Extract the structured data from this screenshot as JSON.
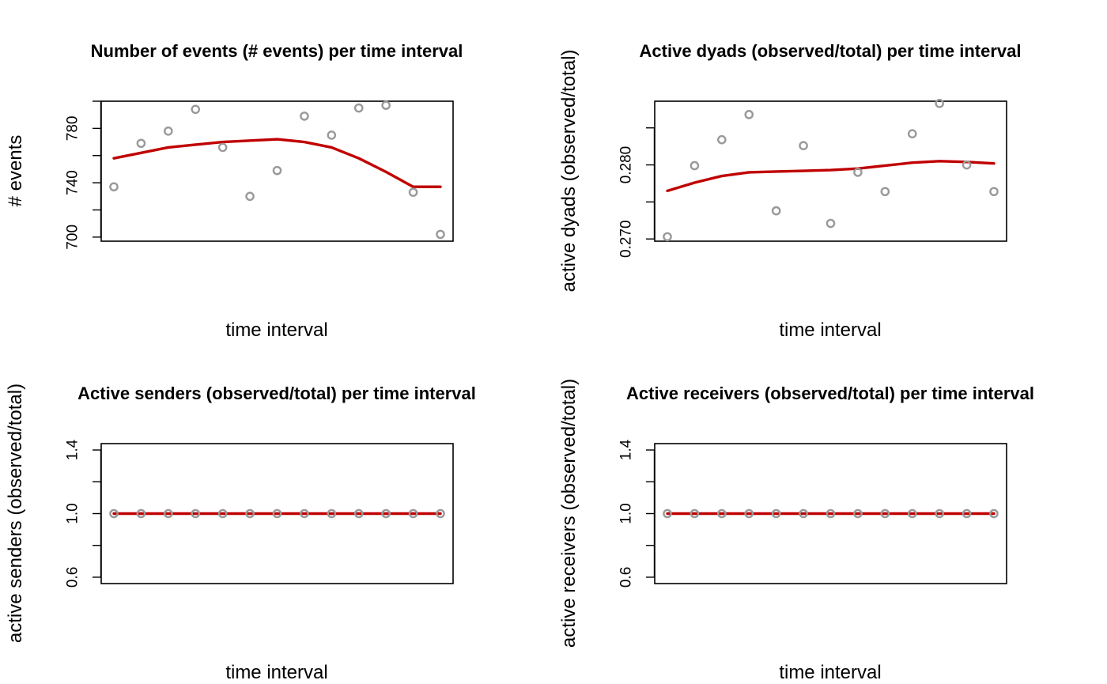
{
  "chart_data": [
    {
      "type": "scatter",
      "title": "Number of events (# events) per time interval",
      "xlabel": "time interval",
      "ylabel": "# events",
      "x": [
        1,
        2,
        3,
        4,
        5,
        6,
        7,
        8,
        9,
        10,
        11,
        12,
        13
      ],
      "ylim": [
        697,
        800
      ],
      "yticks": [
        700,
        740,
        780
      ],
      "yminor": [
        720,
        760,
        800
      ],
      "series": [
        {
          "role": "points",
          "values": [
            737,
            769,
            778,
            794,
            766,
            730,
            749,
            789,
            775,
            795,
            797,
            733,
            702
          ]
        },
        {
          "role": "trend",
          "values": [
            758,
            762,
            766,
            768,
            770,
            771,
            772,
            770,
            766,
            758,
            748,
            737,
            737
          ]
        }
      ],
      "colors": {
        "points": "#999999",
        "trend": "#c00000"
      },
      "grid": false
    },
    {
      "type": "scatter",
      "title": "Active dyads (observed/total) per time interval",
      "xlabel": "time interval",
      "ylabel": "active dyads (observed/total)",
      "x": [
        1,
        2,
        3,
        4,
        5,
        6,
        7,
        8,
        9,
        10,
        11,
        12,
        13
      ],
      "ylim": [
        0.2697,
        0.2886
      ],
      "yticks": [
        0.27,
        0.28
      ],
      "ytick_labels": [
        "0.270",
        "0.280"
      ],
      "yminor": [
        0.275,
        0.285
      ],
      "series": [
        {
          "role": "points",
          "values": [
            0.2703,
            0.2799,
            0.2834,
            0.2868,
            0.2738,
            0.2826,
            0.2721,
            0.279,
            0.2764,
            0.2842,
            0.2883,
            0.28,
            0.2764
          ]
        },
        {
          "role": "trend",
          "values": [
            0.2765,
            0.2776,
            0.2785,
            0.279,
            0.2791,
            0.2792,
            0.2793,
            0.2795,
            0.2799,
            0.2803,
            0.2805,
            0.2804,
            0.2802
          ]
        }
      ],
      "colors": {
        "points": "#999999",
        "trend": "#c00000"
      },
      "grid": false
    },
    {
      "type": "scatter",
      "title": "Active senders (observed/total) per time interval",
      "xlabel": "time interval",
      "ylabel": "active senders (observed/total)",
      "x": [
        1,
        2,
        3,
        4,
        5,
        6,
        7,
        8,
        9,
        10,
        11,
        12,
        13
      ],
      "ylim": [
        0.56,
        1.44
      ],
      "yticks": [
        0.6,
        1.0,
        1.4
      ],
      "ytick_labels": [
        "0.6",
        "1.0",
        "1.4"
      ],
      "yminor": [
        0.8,
        1.2
      ],
      "series": [
        {
          "role": "points",
          "values": [
            1,
            1,
            1,
            1,
            1,
            1,
            1,
            1,
            1,
            1,
            1,
            1,
            1
          ]
        },
        {
          "role": "trend",
          "values": [
            1,
            1,
            1,
            1,
            1,
            1,
            1,
            1,
            1,
            1,
            1,
            1,
            1
          ]
        }
      ],
      "colors": {
        "points": "#999999",
        "trend": "#c00000"
      },
      "grid": false
    },
    {
      "type": "scatter",
      "title": "Active receivers (observed/total) per time interval",
      "xlabel": "time interval",
      "ylabel": "active receivers (observed/total)",
      "x": [
        1,
        2,
        3,
        4,
        5,
        6,
        7,
        8,
        9,
        10,
        11,
        12,
        13
      ],
      "ylim": [
        0.56,
        1.44
      ],
      "yticks": [
        0.6,
        1.0,
        1.4
      ],
      "ytick_labels": [
        "0.6",
        "1.0",
        "1.4"
      ],
      "yminor": [
        0.8,
        1.2
      ],
      "series": [
        {
          "role": "points",
          "values": [
            1,
            1,
            1,
            1,
            1,
            1,
            1,
            1,
            1,
            1,
            1,
            1,
            1
          ]
        },
        {
          "role": "trend",
          "values": [
            1,
            1,
            1,
            1,
            1,
            1,
            1,
            1,
            1,
            1,
            1,
            1,
            1
          ]
        }
      ],
      "colors": {
        "points": "#999999",
        "trend": "#c00000"
      },
      "grid": false
    }
  ]
}
